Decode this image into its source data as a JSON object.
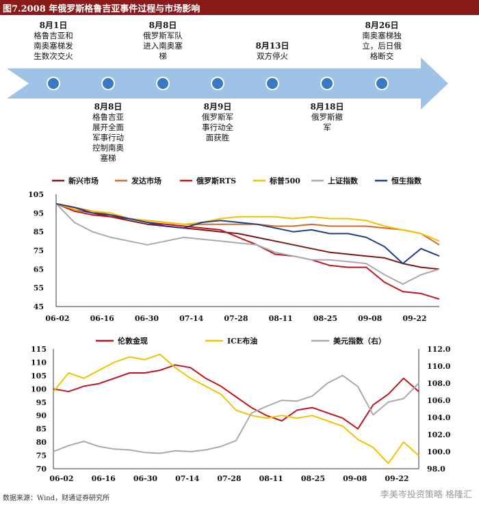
{
  "title": "图7.2008 年俄罗斯格鲁吉亚事件过程与市场影响",
  "timeline": {
    "events": [
      {
        "date": "8月1日",
        "lines": [
          "格鲁吉亚和",
          "南奥塞梯发",
          "生数次交火"
        ],
        "pos": "top"
      },
      {
        "date": "8月8日",
        "lines": [
          "格鲁吉亚",
          "展开全面",
          "军事行动",
          "控制南奥",
          "塞梯"
        ],
        "pos": "bottom"
      },
      {
        "date": "8月8日",
        "lines": [
          "俄罗斯军队",
          "进入南奥塞",
          "梯"
        ],
        "pos": "top"
      },
      {
        "date": "8月9日",
        "lines": [
          "俄罗斯军",
          "事行动全",
          "面获胜"
        ],
        "pos": "bottom"
      },
      {
        "date": "8月13日",
        "lines": [
          "双方停火"
        ],
        "pos": "top"
      },
      {
        "date": "8月18日",
        "lines": [
          "俄罗斯撤",
          "军"
        ],
        "pos": "bottom"
      },
      {
        "date": "8月26日",
        "lines": [
          "南奥塞梯独",
          "立，后日俄",
          "格断交"
        ],
        "pos": "top"
      }
    ]
  },
  "chart_data": [
    {
      "type": "line",
      "title": "",
      "x_ticks": [
        "06-02",
        "06-16",
        "06-30",
        "07-14",
        "07-28",
        "08-11",
        "08-25",
        "09-08",
        "09-22"
      ],
      "ylim": [
        45,
        105
      ],
      "y_ticks": [
        45,
        55,
        65,
        75,
        85,
        95,
        105
      ],
      "series": [
        {
          "name": "新兴市场",
          "color": "#7b1616",
          "values": [
            100,
            97,
            95,
            93,
            91,
            89,
            88,
            87,
            86,
            85,
            84,
            82,
            80,
            78,
            76,
            74,
            73,
            72,
            71,
            68,
            66,
            65
          ]
        },
        {
          "name": "发达市场",
          "color": "#d2692a",
          "values": [
            100,
            98,
            96,
            94,
            92,
            91,
            90,
            89,
            89,
            89,
            89,
            89,
            88,
            88,
            89,
            88,
            88,
            88,
            87,
            86,
            84,
            78
          ]
        },
        {
          "name": "俄罗斯RTS",
          "color": "#c1121f",
          "values": [
            100,
            96,
            94,
            93,
            92,
            90,
            89,
            88,
            87,
            86,
            82,
            78,
            73,
            72,
            70,
            67,
            66,
            66,
            58,
            53,
            52,
            49
          ]
        },
        {
          "name": "标普500",
          "color": "#f2c200",
          "values": [
            100,
            97,
            96,
            95,
            92,
            91,
            90,
            89,
            90,
            92,
            93,
            93,
            93,
            92,
            93,
            92,
            92,
            91,
            88,
            86,
            84,
            80
          ]
        },
        {
          "name": "上证指数",
          "color": "#a9a9a9",
          "values": [
            100,
            90,
            85,
            82,
            80,
            78,
            80,
            82,
            81,
            80,
            79,
            78,
            74,
            72,
            70,
            70,
            69,
            68,
            62,
            57,
            62,
            65
          ]
        },
        {
          "name": "恒生指数",
          "color": "#1d3f86",
          "values": [
            100,
            98,
            95,
            94,
            92,
            90,
            88,
            87,
            90,
            91,
            90,
            89,
            87,
            85,
            86,
            84,
            84,
            82,
            77,
            68,
            76,
            72
          ]
        }
      ]
    },
    {
      "type": "line",
      "title": "",
      "x_ticks": [
        "06-02",
        "06-16",
        "06-30",
        "07-14",
        "07-28",
        "08-11",
        "08-25",
        "09-08",
        "09-22"
      ],
      "ylim": [
        70,
        115
      ],
      "y_ticks": [
        70,
        75,
        80,
        85,
        90,
        95,
        100,
        105,
        110,
        115
      ],
      "y2lim": [
        98,
        112
      ],
      "y2_ticks": [
        "98.0",
        "100.0",
        "102.0",
        "104.0",
        "106.0",
        "108.0",
        "110.0",
        "112.0"
      ],
      "series": [
        {
          "name": "伦敦金现",
          "color": "#c1121f",
          "axis": "left",
          "values": [
            100,
            99,
            101,
            102,
            104,
            106,
            106,
            107,
            109,
            108,
            104,
            101,
            97,
            93,
            90,
            88,
            92,
            93,
            91,
            89,
            85,
            94,
            98,
            104,
            99
          ]
        },
        {
          "name": "ICE布油",
          "color": "#f2c200",
          "axis": "left",
          "values": [
            99,
            106,
            104,
            107,
            110,
            112,
            111,
            113,
            108,
            104,
            101,
            98,
            92,
            90,
            89,
            90,
            89,
            90,
            88,
            86,
            81,
            78,
            72,
            80,
            75
          ]
        },
        {
          "name": "美元指数（右）",
          "color": "#a9a9a9",
          "axis": "right",
          "values": [
            100,
            100.7,
            101.2,
            100.6,
            100.3,
            100.2,
            99.9,
            99.8,
            100.1,
            100.0,
            100.2,
            100.6,
            101.3,
            104.5,
            105.3,
            106.0,
            105.9,
            106.5,
            108.0,
            108.9,
            107.6,
            104.3,
            105.8,
            106.2,
            108.0
          ]
        }
      ]
    }
  ],
  "source": "数据来源：Wind，财通证券研究所",
  "watermark": "李美岑投资策略  格隆汇"
}
